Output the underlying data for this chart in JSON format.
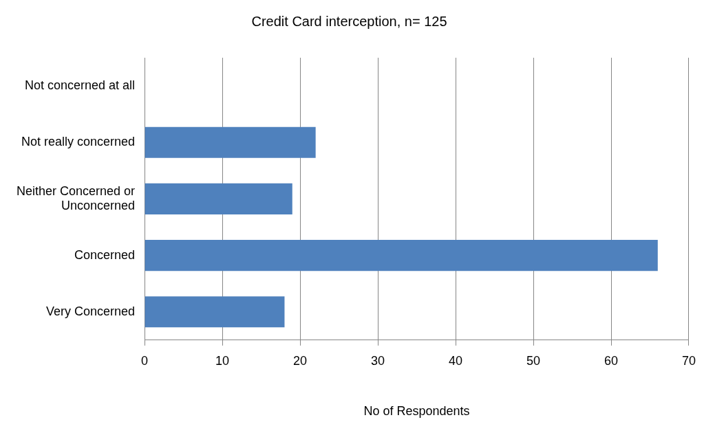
{
  "chart_data": {
    "type": "bar",
    "orientation": "horizontal",
    "title": "Credit Card interception, n= 125",
    "xlabel": "No of Respondents",
    "categories": [
      "Not concerned at all",
      "Not really concerned",
      "Neither Concerned or Unconcerned",
      "Concerned",
      "Very Concerned"
    ],
    "values": [
      0,
      22,
      19,
      66,
      18
    ],
    "color": "#4f81bd",
    "xlim": [
      0,
      70
    ],
    "xticks": [
      0,
      10,
      20,
      30,
      40,
      50,
      60,
      70
    ],
    "grid": "x"
  }
}
